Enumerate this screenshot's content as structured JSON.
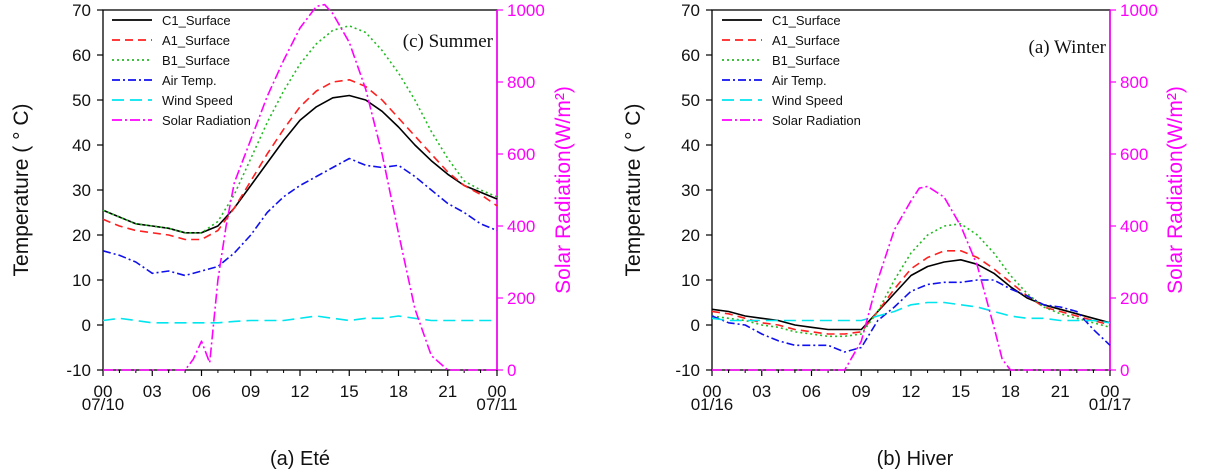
{
  "chart_data": [
    {
      "type": "line",
      "title": "(c) Summer",
      "caption": "(a) Eté",
      "ylabel": "Temperature ( ° C)",
      "y2label": "Solar Radiation(W/m²)",
      "ylim": [
        -10,
        70
      ],
      "y2lim": [
        0,
        1000
      ],
      "x_ticks": [
        "00",
        "03",
        "06",
        "09",
        "12",
        "15",
        "18",
        "21",
        "00"
      ],
      "x_dates": [
        "07/10",
        "07/11"
      ],
      "y_ticks": [
        "-10",
        "0",
        "10",
        "20",
        "30",
        "40",
        "50",
        "60",
        "70"
      ],
      "y2_ticks": [
        "0",
        "200",
        "400",
        "600",
        "800",
        "1000"
      ],
      "legend_position": "top-left",
      "series": [
        {
          "name": "C1_Surface",
          "color": "#000000",
          "dash": "",
          "axis": "left",
          "x": [
            0,
            1,
            2,
            3,
            4,
            5,
            6,
            7,
            8,
            9,
            10,
            11,
            12,
            13,
            14,
            15,
            16,
            17,
            18,
            19,
            20,
            21,
            22,
            23,
            24
          ],
          "y": [
            25.5,
            24,
            22.5,
            22,
            21.5,
            20.5,
            20.5,
            22,
            26,
            31,
            36,
            41,
            45.5,
            48.5,
            50.5,
            51,
            50,
            47.5,
            44,
            40,
            36.5,
            33.5,
            31,
            29.5,
            28
          ]
        },
        {
          "name": "A1_Surface",
          "color": "#ff2020",
          "dash": "8,5",
          "axis": "left",
          "x": [
            0,
            1,
            2,
            3,
            4,
            5,
            6,
            7,
            8,
            9,
            10,
            11,
            12,
            13,
            14,
            15,
            16,
            17,
            18,
            19,
            20,
            21,
            22,
            23,
            24
          ],
          "y": [
            23.5,
            22,
            21,
            20.5,
            20,
            19,
            19,
            21,
            26,
            32,
            38,
            43.5,
            48.5,
            52,
            54,
            54.5,
            53,
            50,
            46,
            42,
            38,
            34,
            31,
            29,
            26.5
          ]
        },
        {
          "name": "B1_Surface",
          "color": "#22bb22",
          "dash": "2,3",
          "axis": "left",
          "x": [
            0,
            1,
            2,
            3,
            4,
            5,
            6,
            7,
            8,
            9,
            10,
            11,
            12,
            13,
            14,
            15,
            16,
            17,
            18,
            19,
            20,
            21,
            22,
            23,
            24
          ],
          "y": [
            25.5,
            24,
            22.5,
            22,
            21.5,
            20.5,
            20.5,
            23,
            29,
            37,
            45,
            52,
            58,
            62.5,
            65.5,
            66.5,
            65,
            61,
            56,
            50,
            43,
            37,
            32,
            30,
            28.5
          ]
        },
        {
          "name": "Air Temp.",
          "color": "#1010ee",
          "dash": "8,3,2,3",
          "axis": "left",
          "x": [
            0,
            1,
            2,
            3,
            4,
            5,
            6,
            7,
            8,
            9,
            10,
            11,
            12,
            13,
            14,
            15,
            16,
            17,
            18,
            19,
            20,
            21,
            22,
            23,
            24
          ],
          "y": [
            16.5,
            15.5,
            14,
            11.5,
            12,
            11,
            12,
            13,
            16,
            20,
            25,
            28.5,
            31,
            33,
            35,
            37,
            35.5,
            35,
            35.5,
            33,
            30,
            27,
            25,
            22.5,
            21
          ]
        },
        {
          "name": "Wind Speed",
          "color": "#00e5ee",
          "dash": "12,6",
          "axis": "left",
          "x": [
            0,
            1,
            2,
            3,
            4,
            5,
            6,
            7,
            8,
            9,
            10,
            11,
            12,
            13,
            14,
            15,
            16,
            17,
            18,
            19,
            20,
            21,
            22,
            23,
            24
          ],
          "y": [
            1,
            1.5,
            1,
            0.5,
            0.5,
            0.5,
            0.5,
            0.5,
            0.8,
            1,
            1,
            1,
            1.5,
            2,
            1.5,
            1,
            1.5,
            1.5,
            2,
            1.5,
            1,
            1,
            1,
            1,
            1
          ]
        },
        {
          "name": "Solar Radiation",
          "color": "#ff00ff",
          "dash": "10,3,2,3",
          "axis": "right",
          "x": [
            0,
            1,
            2,
            3,
            4,
            5,
            5.5,
            6,
            6.5,
            7,
            7.5,
            8,
            9,
            10,
            11,
            12,
            13,
            13.5,
            14,
            15,
            16,
            17,
            18,
            19,
            20,
            21,
            22,
            23,
            24
          ],
          "y": [
            0,
            0,
            0,
            0,
            0,
            0,
            30,
            80,
            20,
            250,
            400,
            520,
            640,
            760,
            860,
            950,
            1010,
            1015,
            990,
            910,
            780,
            600,
            380,
            170,
            40,
            0,
            0,
            0,
            0
          ]
        }
      ]
    },
    {
      "type": "line",
      "title": "(a) Winter",
      "caption": "(b) Hiver",
      "ylabel": "Temperature ( ° C)",
      "y2label": "Solar Radiation(W/m²)",
      "ylim": [
        -10,
        70
      ],
      "y2lim": [
        0,
        1000
      ],
      "x_ticks": [
        "00",
        "03",
        "06",
        "09",
        "12",
        "15",
        "18",
        "21",
        "00"
      ],
      "x_dates": [
        "01/16",
        "01/17"
      ],
      "y_ticks": [
        "-10",
        "0",
        "10",
        "20",
        "30",
        "40",
        "50",
        "60",
        "70"
      ],
      "y2_ticks": [
        "0",
        "200",
        "400",
        "600",
        "800",
        "1000"
      ],
      "legend_position": "top-left",
      "series": [
        {
          "name": "C1_Surface",
          "color": "#000000",
          "dash": "",
          "axis": "left",
          "x": [
            0,
            1,
            2,
            3,
            4,
            5,
            6,
            7,
            8,
            9,
            10,
            11,
            12,
            13,
            14,
            15,
            16,
            17,
            18,
            19,
            20,
            21,
            22,
            23,
            24
          ],
          "y": [
            3.5,
            3,
            2,
            1.5,
            1,
            0,
            -0.5,
            -1,
            -1,
            -1,
            3,
            7,
            11,
            13,
            14,
            14.5,
            13.5,
            11.5,
            8.5,
            6,
            4.5,
            3.5,
            2.5,
            1.5,
            0.5
          ]
        },
        {
          "name": "A1_Surface",
          "color": "#ff2020",
          "dash": "8,5",
          "axis": "left",
          "x": [
            0,
            1,
            2,
            3,
            4,
            5,
            6,
            7,
            8,
            9,
            10,
            11,
            12,
            13,
            14,
            15,
            16,
            17,
            18,
            19,
            20,
            21,
            22,
            23,
            24
          ],
          "y": [
            3,
            2.5,
            1.5,
            0.5,
            0,
            -1,
            -1.5,
            -2,
            -2,
            -1.5,
            3,
            8,
            12.5,
            15,
            16.5,
            16.5,
            15,
            12.5,
            9.5,
            6.5,
            4,
            3,
            2,
            1,
            0
          ]
        },
        {
          "name": "B1_Surface",
          "color": "#22bb22",
          "dash": "2,3",
          "axis": "left",
          "x": [
            0,
            1,
            2,
            3,
            4,
            5,
            6,
            7,
            8,
            9,
            10,
            11,
            12,
            13,
            14,
            15,
            16,
            17,
            18,
            19,
            20,
            21,
            22,
            23,
            24
          ],
          "y": [
            2,
            1.5,
            1,
            0,
            -0.5,
            -1.5,
            -2,
            -2.5,
            -2.5,
            -2,
            3,
            10,
            16,
            20,
            22,
            22.5,
            20,
            16,
            11,
            7,
            4,
            2.5,
            1.5,
            0.5,
            -0.5
          ]
        },
        {
          "name": "Air Temp.",
          "color": "#1010ee",
          "dash": "8,3,2,3",
          "axis": "left",
          "x": [
            0,
            1,
            2,
            3,
            4,
            5,
            6,
            7,
            8,
            9,
            10,
            11,
            12,
            13,
            14,
            15,
            16,
            17,
            18,
            19,
            20,
            21,
            22,
            23,
            24
          ],
          "y": [
            2,
            0.5,
            0,
            -2,
            -3.5,
            -4.5,
            -4.5,
            -4.5,
            -6,
            -5,
            1,
            4,
            7.5,
            9,
            9.5,
            9.5,
            10,
            10,
            8,
            6.5,
            4.5,
            4,
            3,
            -1,
            -4.5
          ]
        },
        {
          "name": "Wind Speed",
          "color": "#00e5ee",
          "dash": "12,6",
          "axis": "left",
          "x": [
            0,
            1,
            2,
            3,
            4,
            5,
            6,
            7,
            8,
            9,
            10,
            11,
            12,
            13,
            14,
            15,
            16,
            17,
            18,
            19,
            20,
            21,
            22,
            23,
            24
          ],
          "y": [
            1.5,
            1,
            1,
            1,
            1,
            1,
            1,
            1,
            1,
            1,
            2,
            3,
            4.5,
            5,
            5,
            4.5,
            4,
            3,
            2,
            1.5,
            1.5,
            1,
            1,
            1,
            0.5
          ]
        },
        {
          "name": "Solar Radiation",
          "color": "#ff00ff",
          "dash": "10,3,2,3",
          "axis": "right",
          "x": [
            0,
            1,
            2,
            3,
            4,
            5,
            6,
            7,
            8,
            9,
            10,
            11,
            12,
            12.5,
            13,
            14,
            15,
            16,
            17,
            17.5,
            18,
            19,
            20,
            21,
            22,
            23,
            24
          ],
          "y": [
            0,
            0,
            0,
            0,
            0,
            0,
            0,
            0,
            0,
            80,
            250,
            390,
            470,
            505,
            510,
            480,
            400,
            290,
            120,
            30,
            0,
            0,
            0,
            0,
            0,
            0,
            0
          ]
        }
      ]
    }
  ]
}
